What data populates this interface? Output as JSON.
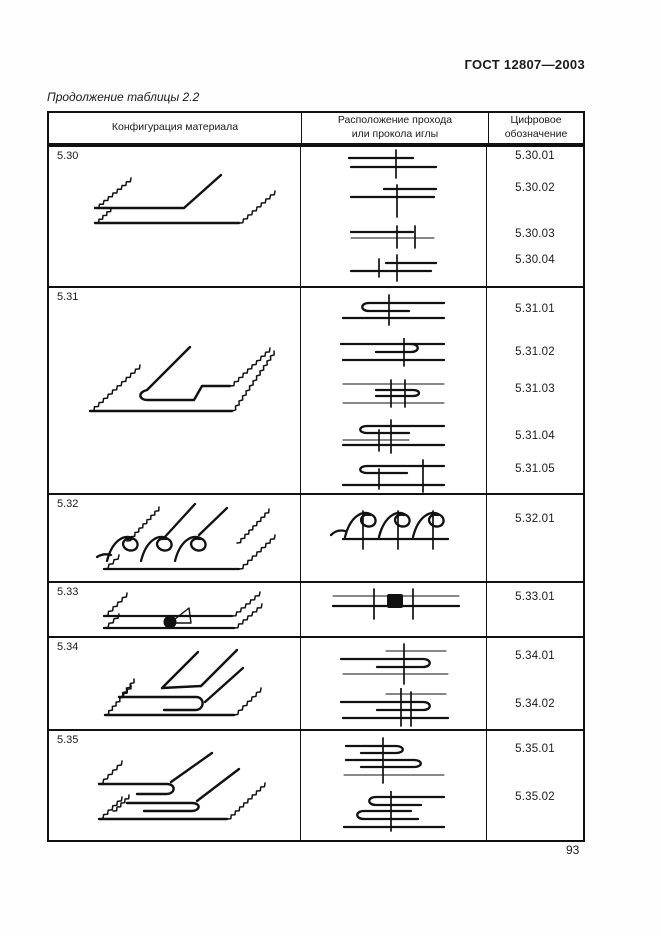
{
  "page": {
    "doc_number": "ГОСТ 12807—2003",
    "table_caption": "Продолжение таблицы 2.2",
    "page_number": "93"
  },
  "table": {
    "headers": {
      "col1": "Конфигурация материала",
      "col2_line1": "Расположение прохода",
      "col2_line2": "или прокола иглы",
      "col3_line1": "Цифровое",
      "col3_line2": "обозначение"
    }
  },
  "rows": [
    {
      "id": "5.30",
      "codes": [
        "5.30.01",
        "5.30.02",
        "5.30.03",
        "5.30.04"
      ]
    },
    {
      "id": "5.31",
      "codes": [
        "5.31.01",
        "5.31.02",
        "5.31.03",
        "5.31.04",
        "5.31.05"
      ]
    },
    {
      "id": "5.32",
      "codes": [
        "5.32.01"
      ]
    },
    {
      "id": "5.33",
      "codes": [
        "5.33.01"
      ]
    },
    {
      "id": "5.34",
      "codes": [
        "5.34.01",
        "5.34.02"
      ]
    },
    {
      "id": "5.35",
      "codes": [
        "5.35.01",
        "5.35.02"
      ]
    }
  ]
}
